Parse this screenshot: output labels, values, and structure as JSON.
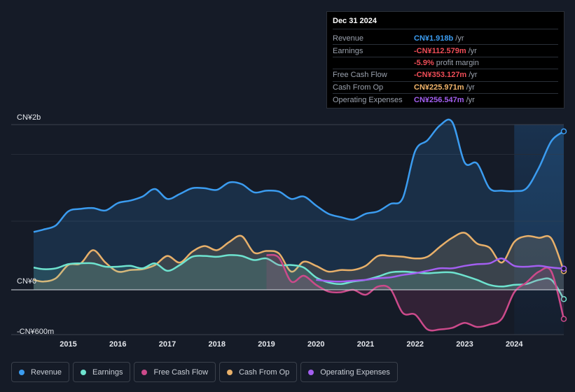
{
  "tooltip": {
    "date": "Dec 31 2024",
    "rows": [
      {
        "label": "Revenue",
        "value": "CN¥1.918b",
        "unit": "/yr",
        "color": "#3b9cf0"
      },
      {
        "label": "Earnings",
        "value": "-CN¥112.579m",
        "unit": "/yr",
        "color": "#ef4d57"
      },
      {
        "label": "",
        "value": "-5.9%",
        "unit": "profit margin",
        "color": "#ef4d57"
      },
      {
        "label": "Free Cash Flow",
        "value": "-CN¥353.127m",
        "unit": "/yr",
        "color": "#ef4d57"
      },
      {
        "label": "Cash From Op",
        "value": "CN¥225.971m",
        "unit": "/yr",
        "color": "#f2b56b"
      },
      {
        "label": "Operating Expenses",
        "value": "CN¥256.547m",
        "unit": "/yr",
        "color": "#a35ff0"
      }
    ]
  },
  "legend": [
    {
      "label": "Revenue",
      "color": "#3b9cf0"
    },
    {
      "label": "Earnings",
      "color": "#6ee3cf"
    },
    {
      "label": "Free Cash Flow",
      "color": "#cc4a8b"
    },
    {
      "label": "Cash From Op",
      "color": "#e8b06a"
    },
    {
      "label": "Operating Expenses",
      "color": "#a35ff0"
    }
  ],
  "chart_data": {
    "type": "area",
    "ylim": [
      -600,
      2000
    ],
    "y_unit": "CN¥m",
    "y_tick_labels": [
      {
        "value": 2000,
        "label": "CN¥2b"
      },
      {
        "value": 0,
        "label": "CN¥0"
      },
      {
        "value": -600,
        "label": "-CN¥600m"
      }
    ],
    "xlim": [
      2014.3,
      2025.0
    ],
    "x_ticks": [
      2015,
      2016,
      2017,
      2018,
      2019,
      2020,
      2021,
      2022,
      2023,
      2024
    ],
    "x_tick_labels": [
      "2015",
      "2016",
      "2017",
      "2018",
      "2019",
      "2020",
      "2021",
      "2022",
      "2023",
      "2024"
    ],
    "highlight_from": 2024.0,
    "series": [
      {
        "name": "Revenue",
        "color": "#3b9cf0",
        "fill": true,
        "points": [
          [
            2014.3,
            700
          ],
          [
            2014.5,
            730
          ],
          [
            2014.75,
            780
          ],
          [
            2015.0,
            950
          ],
          [
            2015.25,
            980
          ],
          [
            2015.5,
            990
          ],
          [
            2015.75,
            960
          ],
          [
            2016.0,
            1050
          ],
          [
            2016.25,
            1080
          ],
          [
            2016.5,
            1130
          ],
          [
            2016.75,
            1220
          ],
          [
            2017.0,
            1100
          ],
          [
            2017.25,
            1160
          ],
          [
            2017.5,
            1230
          ],
          [
            2017.75,
            1230
          ],
          [
            2018.0,
            1210
          ],
          [
            2018.25,
            1300
          ],
          [
            2018.5,
            1280
          ],
          [
            2018.75,
            1180
          ],
          [
            2019.0,
            1200
          ],
          [
            2019.25,
            1190
          ],
          [
            2019.5,
            1100
          ],
          [
            2019.75,
            1130
          ],
          [
            2020.0,
            1020
          ],
          [
            2020.25,
            920
          ],
          [
            2020.5,
            880
          ],
          [
            2020.75,
            850
          ],
          [
            2021.0,
            920
          ],
          [
            2021.25,
            950
          ],
          [
            2021.5,
            1040
          ],
          [
            2021.75,
            1110
          ],
          [
            2022.0,
            1680
          ],
          [
            2022.25,
            1810
          ],
          [
            2022.5,
            1990
          ],
          [
            2022.75,
            2030
          ],
          [
            2023.0,
            1540
          ],
          [
            2023.25,
            1530
          ],
          [
            2023.5,
            1230
          ],
          [
            2023.75,
            1200
          ],
          [
            2024.0,
            1195
          ],
          [
            2024.25,
            1230
          ],
          [
            2024.5,
            1480
          ],
          [
            2024.75,
            1800
          ],
          [
            2025.0,
            1918
          ]
        ]
      },
      {
        "name": "Earnings",
        "color": "#6ee3cf",
        "fill": true,
        "points": [
          [
            2014.3,
            270
          ],
          [
            2014.5,
            250
          ],
          [
            2014.75,
            260
          ],
          [
            2015.0,
            310
          ],
          [
            2015.25,
            320
          ],
          [
            2015.5,
            320
          ],
          [
            2015.75,
            280
          ],
          [
            2016.0,
            280
          ],
          [
            2016.25,
            290
          ],
          [
            2016.5,
            260
          ],
          [
            2016.75,
            320
          ],
          [
            2017.0,
            230
          ],
          [
            2017.25,
            300
          ],
          [
            2017.5,
            400
          ],
          [
            2017.75,
            410
          ],
          [
            2018.0,
            400
          ],
          [
            2018.25,
            420
          ],
          [
            2018.5,
            410
          ],
          [
            2018.75,
            360
          ],
          [
            2019.0,
            380
          ],
          [
            2019.25,
            300
          ],
          [
            2019.5,
            300
          ],
          [
            2019.75,
            270
          ],
          [
            2020.0,
            150
          ],
          [
            2020.25,
            90
          ],
          [
            2020.5,
            70
          ],
          [
            2020.75,
            100
          ],
          [
            2021.0,
            120
          ],
          [
            2021.25,
            160
          ],
          [
            2021.5,
            210
          ],
          [
            2021.75,
            220
          ],
          [
            2022.0,
            210
          ],
          [
            2022.25,
            200
          ],
          [
            2022.5,
            210
          ],
          [
            2022.75,
            210
          ],
          [
            2023.0,
            170
          ],
          [
            2023.25,
            120
          ],
          [
            2023.5,
            60
          ],
          [
            2023.75,
            40
          ],
          [
            2024.0,
            60
          ],
          [
            2024.25,
            70
          ],
          [
            2024.5,
            120
          ],
          [
            2024.75,
            120
          ],
          [
            2025.0,
            -112.6
          ]
        ]
      },
      {
        "name": "Free Cash Flow",
        "color": "#cc4a8b",
        "fill": true,
        "points": [
          [
            2019.0,
            420
          ],
          [
            2019.25,
            390
          ],
          [
            2019.5,
            100
          ],
          [
            2019.75,
            170
          ],
          [
            2020.0,
            60
          ],
          [
            2020.25,
            -20
          ],
          [
            2020.5,
            -30
          ],
          [
            2020.75,
            0
          ],
          [
            2021.0,
            -60
          ],
          [
            2021.25,
            40
          ],
          [
            2021.5,
            10
          ],
          [
            2021.75,
            -280
          ],
          [
            2022.0,
            -300
          ],
          [
            2022.25,
            -480
          ],
          [
            2022.5,
            -480
          ],
          [
            2022.75,
            -460
          ],
          [
            2023.0,
            -400
          ],
          [
            2023.25,
            -450
          ],
          [
            2023.5,
            -420
          ],
          [
            2023.75,
            -350
          ],
          [
            2024.0,
            -30
          ],
          [
            2024.25,
            90
          ],
          [
            2024.5,
            220
          ],
          [
            2024.75,
            220
          ],
          [
            2025.0,
            -353.1
          ]
        ]
      },
      {
        "name": "Cash From Op",
        "color": "#e8b06a",
        "fill": true,
        "points": [
          [
            2014.3,
            120
          ],
          [
            2014.5,
            100
          ],
          [
            2014.75,
            140
          ],
          [
            2015.0,
            300
          ],
          [
            2015.25,
            320
          ],
          [
            2015.5,
            480
          ],
          [
            2015.75,
            330
          ],
          [
            2016.0,
            220
          ],
          [
            2016.25,
            240
          ],
          [
            2016.5,
            250
          ],
          [
            2016.75,
            300
          ],
          [
            2017.0,
            410
          ],
          [
            2017.25,
            330
          ],
          [
            2017.5,
            460
          ],
          [
            2017.75,
            530
          ],
          [
            2018.0,
            480
          ],
          [
            2018.25,
            580
          ],
          [
            2018.5,
            650
          ],
          [
            2018.75,
            450
          ],
          [
            2019.0,
            470
          ],
          [
            2019.25,
            440
          ],
          [
            2019.5,
            220
          ],
          [
            2019.75,
            340
          ],
          [
            2020.0,
            290
          ],
          [
            2020.25,
            220
          ],
          [
            2020.5,
            240
          ],
          [
            2020.75,
            240
          ],
          [
            2021.0,
            290
          ],
          [
            2021.25,
            410
          ],
          [
            2021.5,
            410
          ],
          [
            2021.75,
            400
          ],
          [
            2022.0,
            380
          ],
          [
            2022.25,
            400
          ],
          [
            2022.5,
            520
          ],
          [
            2022.75,
            630
          ],
          [
            2023.0,
            690
          ],
          [
            2023.25,
            560
          ],
          [
            2023.5,
            510
          ],
          [
            2023.75,
            330
          ],
          [
            2024.0,
            580
          ],
          [
            2024.25,
            650
          ],
          [
            2024.5,
            630
          ],
          [
            2024.75,
            620
          ],
          [
            2025.0,
            226
          ]
        ]
      },
      {
        "name": "Operating Expenses",
        "color": "#a35ff0",
        "fill": false,
        "points": [
          [
            2020.0,
            120
          ],
          [
            2020.25,
            105
          ],
          [
            2020.5,
            100
          ],
          [
            2020.75,
            110
          ],
          [
            2021.0,
            120
          ],
          [
            2021.25,
            140
          ],
          [
            2021.5,
            150
          ],
          [
            2021.75,
            180
          ],
          [
            2022.0,
            200
          ],
          [
            2022.25,
            230
          ],
          [
            2022.5,
            260
          ],
          [
            2022.75,
            260
          ],
          [
            2023.0,
            290
          ],
          [
            2023.25,
            310
          ],
          [
            2023.5,
            320
          ],
          [
            2023.75,
            380
          ],
          [
            2024.0,
            290
          ],
          [
            2024.25,
            280
          ],
          [
            2024.5,
            290
          ],
          [
            2024.75,
            270
          ],
          [
            2025.0,
            256.5
          ]
        ]
      }
    ]
  }
}
